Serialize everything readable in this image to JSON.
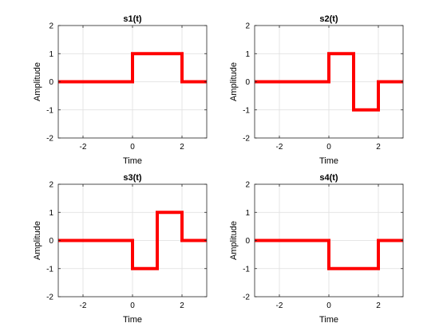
{
  "colors": {
    "line": "#ff0000",
    "axes": "#262626",
    "grid": "#dedede",
    "background": "#ffffff"
  },
  "chart_data": [
    {
      "type": "line",
      "title": "s1(t)",
      "xlabel": "Time",
      "ylabel": "Amplitude",
      "xlim": [
        -3,
        3
      ],
      "ylim": [
        -2,
        2
      ],
      "xticks": [
        -2,
        0,
        2
      ],
      "yticks": [
        -2,
        -1,
        0,
        1,
        2
      ],
      "grid": true,
      "series": [
        {
          "x": [
            -3,
            0,
            0,
            2,
            2,
            3
          ],
          "y": [
            0,
            0,
            1,
            1,
            0,
            0
          ]
        }
      ]
    },
    {
      "type": "line",
      "title": "s2(t)",
      "xlabel": "Time",
      "ylabel": "Amplitude",
      "xlim": [
        -3,
        3
      ],
      "ylim": [
        -2,
        2
      ],
      "xticks": [
        -2,
        0,
        2
      ],
      "yticks": [
        -2,
        -1,
        0,
        1,
        2
      ],
      "grid": true,
      "series": [
        {
          "x": [
            -3,
            0,
            0,
            1,
            1,
            2,
            2,
            3
          ],
          "y": [
            0,
            0,
            1,
            1,
            -1,
            -1,
            0,
            0
          ]
        }
      ]
    },
    {
      "type": "line",
      "title": "s3(t)",
      "xlabel": "Time",
      "ylabel": "Amplitude",
      "xlim": [
        -3,
        3
      ],
      "ylim": [
        -2,
        2
      ],
      "xticks": [
        -2,
        0,
        2
      ],
      "yticks": [
        -2,
        -1,
        0,
        1,
        2
      ],
      "grid": true,
      "series": [
        {
          "x": [
            -3,
            0,
            0,
            1,
            1,
            2,
            2,
            3
          ],
          "y": [
            0,
            0,
            -1,
            -1,
            1,
            1,
            0,
            0
          ]
        }
      ]
    },
    {
      "type": "line",
      "title": "s4(t)",
      "xlabel": "Time",
      "ylabel": "Amplitude",
      "xlim": [
        -3,
        3
      ],
      "ylim": [
        -2,
        2
      ],
      "xticks": [
        -2,
        0,
        2
      ],
      "yticks": [
        -2,
        -1,
        0,
        1,
        2
      ],
      "grid": true,
      "series": [
        {
          "x": [
            -3,
            0,
            0,
            2,
            2,
            3
          ],
          "y": [
            0,
            0,
            -1,
            -1,
            0,
            0
          ]
        }
      ]
    }
  ]
}
